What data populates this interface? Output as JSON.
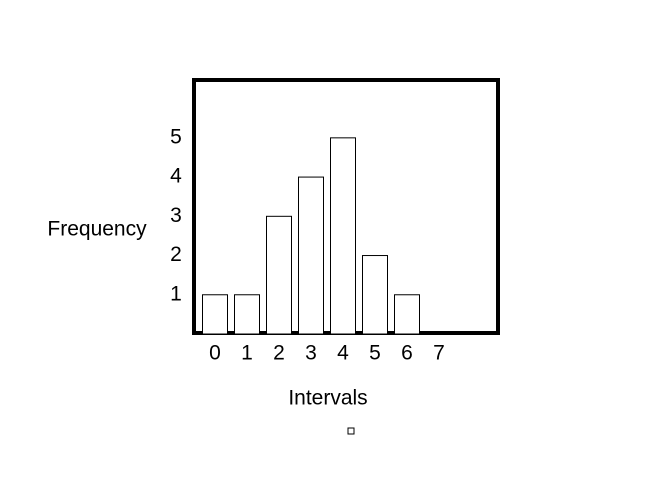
{
  "chart_data": {
    "type": "bar",
    "categories": [
      "0",
      "1",
      "2",
      "3",
      "4",
      "5",
      "6",
      "7"
    ],
    "values": [
      1,
      1,
      3,
      4,
      5,
      2,
      1,
      0
    ],
    "color": "#ffffff",
    "ylim": [
      0,
      6.5
    ],
    "yticks": [
      1,
      2,
      3,
      4,
      5
    ],
    "x_label": "Intervals",
    "y_label": "Frequency",
    "grid": false
  }
}
